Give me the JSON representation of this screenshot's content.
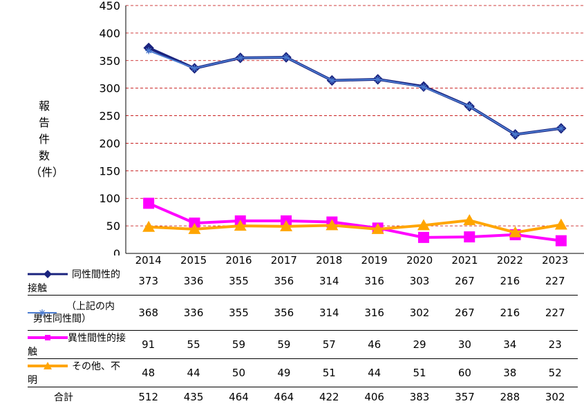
{
  "chart_data": {
    "type": "line",
    "ylabel": "報告件数（件）",
    "ylabel_chars": [
      "報",
      "告",
      "件",
      "数",
      "（件）"
    ],
    "ylim": [
      0,
      450
    ],
    "yticks": [
      0,
      50,
      100,
      150,
      200,
      250,
      300,
      350,
      400,
      450
    ],
    "grid": "horizontal dashed",
    "x": [
      "2014",
      "2015",
      "2016",
      "2017",
      "2018",
      "2019",
      "2020",
      "2021",
      "2022",
      "2023"
    ],
    "series": [
      {
        "name": "同性間性的接触",
        "values": [
          373,
          336,
          355,
          356,
          314,
          316,
          303,
          267,
          216,
          227
        ],
        "color": "#1a237e",
        "marker": "diamond"
      },
      {
        "name": "（上記の内男性同性間）",
        "name_lines": [
          "（上記の内",
          "男性同性間）"
        ],
        "values": [
          368,
          336,
          355,
          356,
          314,
          316,
          302,
          267,
          216,
          227
        ],
        "color": "#4a7bd0",
        "marker": "asterisk"
      },
      {
        "name": "異性間性的接触",
        "values": [
          91,
          55,
          59,
          59,
          57,
          46,
          29,
          30,
          34,
          23
        ],
        "color": "#ff00ff",
        "marker": "square"
      },
      {
        "name": "その他、不明",
        "values": [
          48,
          44,
          50,
          49,
          51,
          44,
          51,
          60,
          38,
          52
        ],
        "color": "#ffa500",
        "marker": "triangle"
      }
    ],
    "totals": {
      "name": "合計",
      "values": [
        512,
        435,
        464,
        464,
        422,
        406,
        383,
        357,
        288,
        302
      ]
    }
  }
}
